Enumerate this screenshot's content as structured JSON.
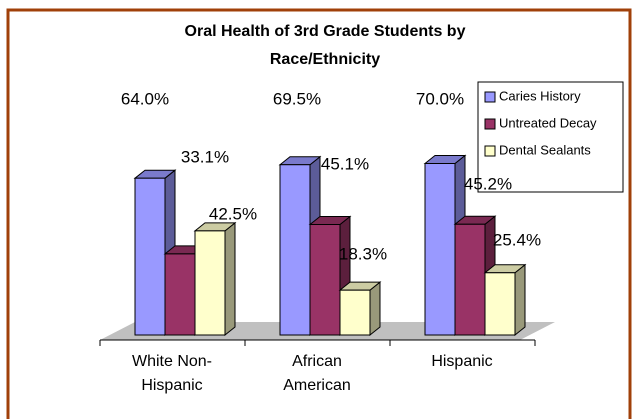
{
  "chart_data": {
    "type": "bar3d",
    "title": [
      "Oral Health of 3rd Grade Students by",
      "Race/Ethnicity"
    ],
    "categories": [
      "White Non-Hispanic",
      "African American",
      "Hispanic"
    ],
    "series": [
      {
        "name": "Caries History",
        "color": "#9999ff",
        "values": [
          64.0,
          69.5,
          70.0
        ],
        "value_labels": [
          "64.0%",
          "69.5%",
          "70.0%"
        ]
      },
      {
        "name": "Untreated Decay",
        "color": "#993366",
        "values": [
          33.1,
          45.1,
          45.2
        ],
        "value_labels": [
          "33.1%",
          "45.1%",
          "45.2%"
        ]
      },
      {
        "name": "Dental Sealants",
        "color": "#ffffcc",
        "values": [
          42.5,
          18.3,
          25.4
        ],
        "value_labels": [
          "42.5%",
          "18.3%",
          "25.4%"
        ]
      }
    ],
    "legend": "top-right"
  }
}
